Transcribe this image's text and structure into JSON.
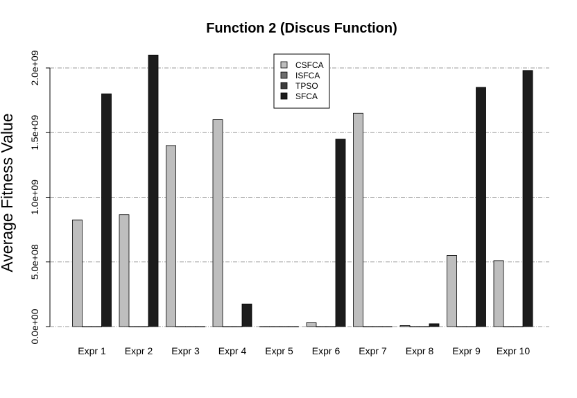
{
  "chart_data": {
    "type": "bar",
    "title": "Function 2 (Discus Function)",
    "xlabel": "",
    "ylabel": "Average Fitness Value",
    "categories": [
      "Expr 1",
      "Expr 2",
      "Expr 3",
      "Expr 4",
      "Expr 5",
      "Expr 6",
      "Expr 7",
      "Expr 8",
      "Expr 9",
      "Expr 10"
    ],
    "series": [
      {
        "name": "CSFCA",
        "color": "#bebebe",
        "values": [
          825000000,
          865000000,
          1400000000,
          1600000000,
          0,
          30000000,
          1650000000,
          8000000,
          550000000,
          510000000
        ]
      },
      {
        "name": "ISFCA",
        "color": "#6e6e6e",
        "values": [
          0,
          0,
          0,
          0,
          0,
          0,
          0,
          0,
          0,
          0
        ]
      },
      {
        "name": "TPSO",
        "color": "#3c3c3c",
        "values": [
          0,
          0,
          0,
          0,
          0,
          0,
          0,
          0,
          0,
          0
        ]
      },
      {
        "name": "SFCA",
        "color": "#1c1c1c",
        "values": [
          1800000000,
          2100000000,
          0,
          175000000,
          0,
          1450000000,
          0,
          22000000,
          1850000000,
          1980000000
        ]
      }
    ],
    "ylim": [
      0,
      2000000000
    ],
    "yticks": [
      0,
      500000000,
      1000000000,
      1500000000,
      2000000000
    ],
    "ytick_labels": [
      "0.0e+00",
      "5.0e+08",
      "1.0e+09",
      "1.5e+09",
      "2.0e+09"
    ],
    "grid": true,
    "legend_position": "top-center"
  }
}
